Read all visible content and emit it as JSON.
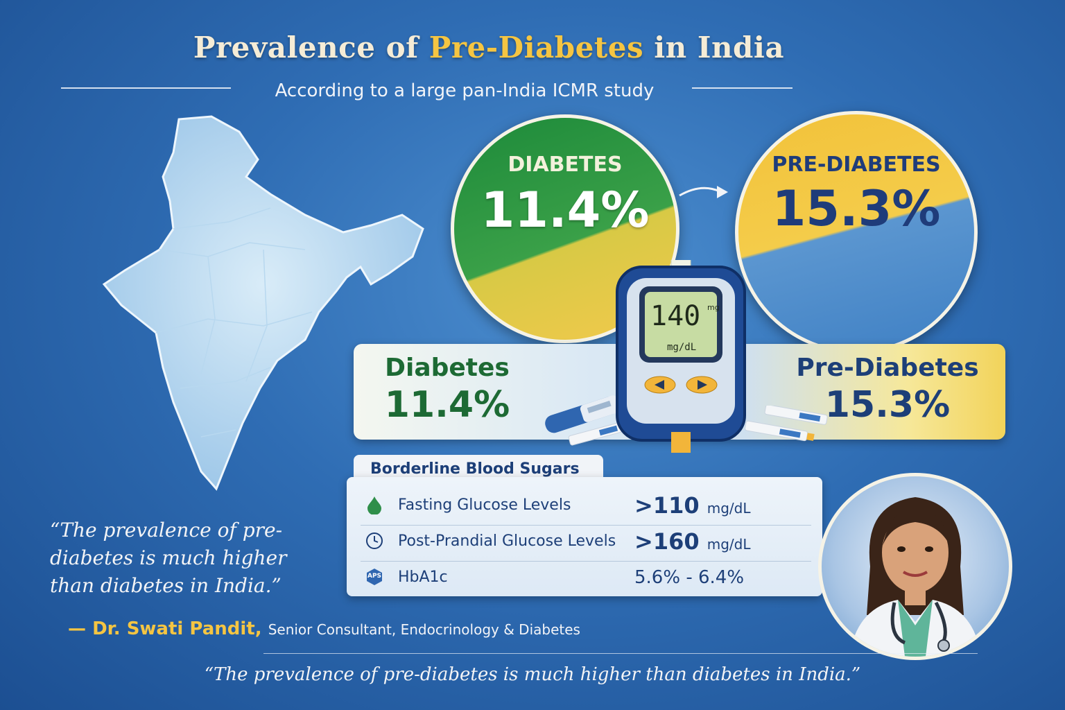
{
  "header": {
    "title_pre": "Prevalence of ",
    "title_highlight": "Pre-Diabetes",
    "title_post": " in India",
    "subtitle": "According to a large pan-India ICMR study"
  },
  "circles": {
    "diabetes": {
      "label": "DIABETES",
      "value": "11.4%"
    },
    "prediabetes": {
      "label": "PRE-DIABETES",
      "value": "15.3%"
    }
  },
  "meter": {
    "reading": "140",
    "unit_small": "mg",
    "unit": "mg/dL"
  },
  "panel": {
    "diabetes_label": "Diabetes",
    "diabetes_value": "11.4%",
    "prediabetes_label": "Pre-Diabetes",
    "prediabetes_value": "15.3%"
  },
  "table": {
    "title": "Borderline Blood Sugars",
    "rows": [
      {
        "icon": "drop-icon",
        "label": "Fasting Glucose Levels",
        "value": ">110",
        "unit": "mg/dL"
      },
      {
        "icon": "clock-icon",
        "label": "Post-Prandial Glucose Levels",
        "value": ">160",
        "unit": "mg/dL"
      },
      {
        "icon": "aps-badge-icon",
        "badge": "APS",
        "label": "HbA1c",
        "value": "5.6% - 6.4%",
        "unit": ""
      }
    ]
  },
  "quote": {
    "text": "“The prevalence of pre-diabetes is much higher than diabetes in India.”",
    "dash": "—",
    "author": "Dr. Swati Pandit,",
    "role": "Senior Consultant, Endocrinology & Diabetes",
    "footer": "“The prevalence of pre-diabetes is much higher than diabetes in India.”"
  },
  "colors": {
    "accent": "#f5c542",
    "navy": "#1d3f78",
    "green": "#1d8a3a"
  }
}
